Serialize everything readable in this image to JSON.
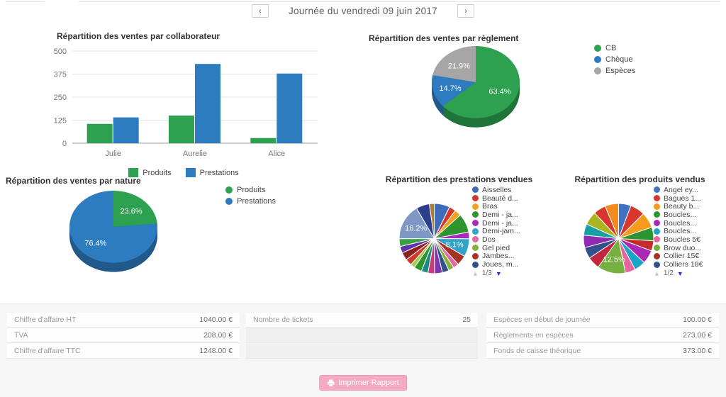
{
  "header": {
    "prev_label": "‹",
    "next_label": "›",
    "title": "Journée du vendredi 09 juin 2017"
  },
  "colors": {
    "green": "#2da14f",
    "blue": "#2d7cc0",
    "gray": "#a6a6a6",
    "pink_button": "#f4abc2"
  },
  "chart_data": [
    {
      "id": "bar-collab",
      "type": "bar",
      "title": "Répartition des ventes par collaborateur",
      "categories": [
        "Julie",
        "Aurelie",
        "Alice"
      ],
      "series": [
        {
          "name": "Produits",
          "color": "#2da14f",
          "values": [
            105,
            150,
            28
          ]
        },
        {
          "name": "Prestations",
          "color": "#2d7cc0",
          "values": [
            140,
            430,
            378
          ]
        }
      ],
      "ylim": [
        0,
        500
      ],
      "yticks": [
        0,
        125,
        250,
        375,
        500
      ],
      "xlabel": "",
      "ylabel": "",
      "grid": true,
      "legend_position": "bottom"
    },
    {
      "id": "pie-reglement",
      "type": "pie",
      "is3d": true,
      "title": "Répartition des ventes par règlement",
      "legend_position": "right",
      "slices": [
        {
          "label": "CB",
          "value": 63.4,
          "color": "#2da14f",
          "text": "63.4%"
        },
        {
          "label": "Chèque",
          "value": 14.7,
          "color": "#2d7cc0",
          "text": "14.7%"
        },
        {
          "label": "Espèces",
          "value": 21.9,
          "color": "#a6a6a6",
          "text": "21.9%"
        }
      ],
      "legend": [
        {
          "label": "CB",
          "color": "#2da14f"
        },
        {
          "label": "Chèque",
          "color": "#2d7cc0"
        },
        {
          "label": "Espèces",
          "color": "#a6a6a6"
        }
      ]
    },
    {
      "id": "pie-nature",
      "type": "pie",
      "is3d": true,
      "title": "Répartition des ventes par nature",
      "legend_position": "right",
      "slices": [
        {
          "label": "Produits",
          "value": 23.6,
          "color": "#2da14f",
          "text": "23.6%"
        },
        {
          "label": "Prestations",
          "value": 76.4,
          "color": "#2d7cc0",
          "text": "76.4%"
        }
      ],
      "legend": [
        {
          "label": "Produits",
          "color": "#2da14f"
        },
        {
          "label": "Prestations",
          "color": "#2d7cc0"
        }
      ]
    },
    {
      "id": "pie-prestations",
      "type": "pie",
      "is3d": false,
      "title": "Répartition des prestations vendues",
      "legend_position": "right",
      "slices": [
        {
          "color": "#3f6bba",
          "value": 7
        },
        {
          "color": "#d03a2b",
          "value": 3
        },
        {
          "color": "#f2a124",
          "value": 3
        },
        {
          "color": "#2d9430",
          "value": 8.5
        },
        {
          "color": "#a82bb5",
          "value": 3
        },
        {
          "color": "#2fa3c9",
          "value": 8.1,
          "text": "8.1%"
        },
        {
          "color": "#a93226",
          "value": 4.5
        },
        {
          "color": "#e06c9f",
          "value": 2.5
        },
        {
          "color": "#86b23c",
          "value": 2.5
        },
        {
          "color": "#31508e",
          "value": 3
        },
        {
          "color": "#7b37ad",
          "value": 3.5
        },
        {
          "color": "#c73a7c",
          "value": 3
        },
        {
          "color": "#1c8c82",
          "value": 3
        },
        {
          "color": "#2d9430",
          "value": 3.5
        },
        {
          "color": "#9ccf4f",
          "value": 2
        },
        {
          "color": "#d03a2b",
          "value": 3
        },
        {
          "color": "#8e1f1f",
          "value": 3.5
        },
        {
          "color": "#5b35a8",
          "value": 3
        },
        {
          "color": "#3aa047",
          "value": 3.5
        },
        {
          "color": "#7e97c3",
          "value": 16.2,
          "text": "16.2%"
        },
        {
          "color": "#2b3f8c",
          "value": 6
        },
        {
          "color": "#b07b35",
          "value": 2.2
        }
      ],
      "legend": [
        {
          "label": "Aisselles",
          "color": "#3f6bba"
        },
        {
          "label": "Beauté d...",
          "color": "#d03a2b"
        },
        {
          "label": "Bras",
          "color": "#f2a124"
        },
        {
          "label": "Demi - ja...",
          "color": "#2d9430"
        },
        {
          "label": "Demi - ja...",
          "color": "#a82bb5"
        },
        {
          "label": "Demi-jam...",
          "color": "#2fa3c9"
        },
        {
          "label": "Dos",
          "color": "#e06c9f"
        },
        {
          "label": "Gel pied",
          "color": "#86b23c"
        },
        {
          "label": "Jambes...",
          "color": "#a93226"
        },
        {
          "label": "Joues, m...",
          "color": "#31508e"
        }
      ],
      "pagination": {
        "up": "▲",
        "label": "1/3",
        "down": "▼"
      }
    },
    {
      "id": "pie-produits",
      "type": "pie",
      "is3d": false,
      "title": "Répartition des produits vendus",
      "legend_position": "right",
      "slices": [
        {
          "color": "#4173c4",
          "value": 5.5
        },
        {
          "color": "#d7372c",
          "value": 6.5
        },
        {
          "color": "#f59b1d",
          "value": 7
        },
        {
          "color": "#2d9430",
          "value": 6
        },
        {
          "color": "#c62b2b",
          "value": 4.5
        },
        {
          "color": "#aa28b5",
          "value": 6
        },
        {
          "color": "#1ba4c8",
          "value": 5
        },
        {
          "color": "#e8649c",
          "value": 4.5
        },
        {
          "color": "#76b041",
          "value": 12.5,
          "text": "12.5%"
        },
        {
          "color": "#c2283d",
          "value": 5.5
        },
        {
          "color": "#32508c",
          "value": 5
        },
        {
          "color": "#8e2bb0",
          "value": 5.5
        },
        {
          "color": "#16a0a6",
          "value": 5
        },
        {
          "color": "#a8b420",
          "value": 6
        },
        {
          "color": "#d7372c",
          "value": 5.5
        },
        {
          "color": "#ef8b1f",
          "value": 6
        }
      ],
      "legend": [
        {
          "label": "Angel ey...",
          "color": "#4173c4"
        },
        {
          "label": "Bagues 1...",
          "color": "#d7372c"
        },
        {
          "label": "Beauty b...",
          "color": "#f59b1d"
        },
        {
          "label": "Boucles...",
          "color": "#2d9430"
        },
        {
          "label": "Boucles...",
          "color": "#aa28b5"
        },
        {
          "label": "Boucles...",
          "color": "#1ba4c8"
        },
        {
          "label": "Boucles 5€",
          "color": "#e8649c"
        },
        {
          "label": "Brow duo...",
          "color": "#76b041"
        },
        {
          "label": "Collier 15€",
          "color": "#a93226"
        },
        {
          "label": "Colliers 18€",
          "color": "#32508c"
        }
      ],
      "pagination": {
        "up": "▲",
        "label": "1/2",
        "down": "▼"
      }
    }
  ],
  "summary_table": {
    "columns": [
      {
        "rows": [
          {
            "label": "Chiffre d'affaire HT",
            "value": "1040.00 €"
          },
          {
            "label": "TVA",
            "value": "208.00 €"
          },
          {
            "label": "Chiffre d'affaire TTC",
            "value": "1248.00 €"
          }
        ]
      },
      {
        "rows": [
          {
            "label": "Nombre de tickets",
            "value": "25"
          },
          {
            "label": "",
            "value": ""
          },
          {
            "label": "",
            "value": ""
          }
        ]
      },
      {
        "rows": [
          {
            "label": "Espèces en début de journée",
            "value": "100.00 €"
          },
          {
            "label": "Règlements en espèces",
            "value": "273.00 €"
          },
          {
            "label": "Fonds de caisse théorique",
            "value": "373.00 €"
          }
        ]
      }
    ]
  },
  "print_button": {
    "label": "Imprimer Rapport"
  }
}
